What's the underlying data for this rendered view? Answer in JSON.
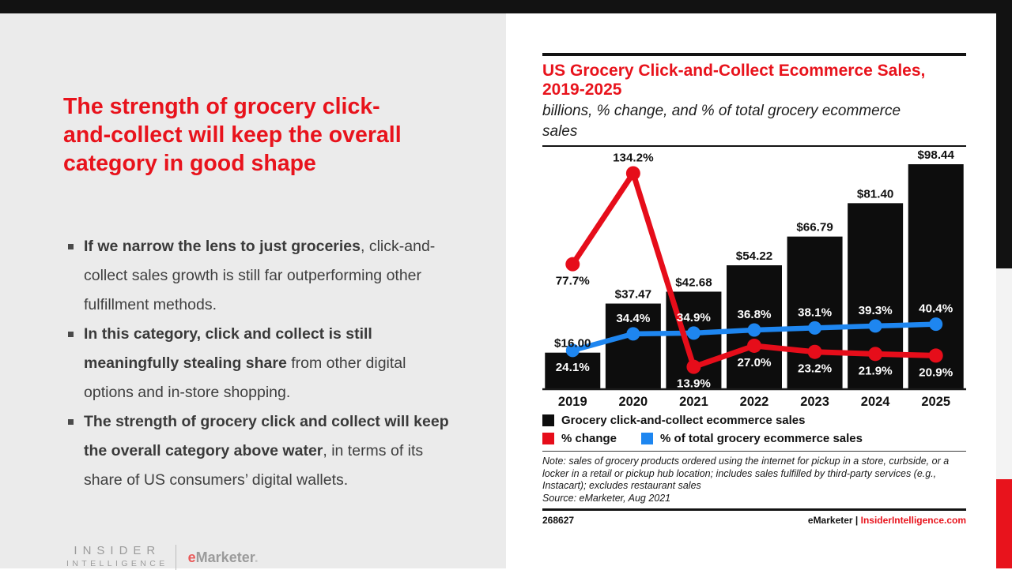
{
  "colors": {
    "accent_red": "#e8131c",
    "line_red": "#e60d1a",
    "line_blue": "#1e86f0",
    "bar_black": "#0d0d0d",
    "panel_gray": "#ebebeb",
    "top_bar_black": "#121212",
    "edge_gray": "#f3f3f3",
    "logo_gray": "#9b9b9b",
    "logo_e_red": "#ea5a5a",
    "body_text": "#3f3f3f"
  },
  "left": {
    "title": "The strength of grocery click-\nand-collect will keep the overall\ncategory in good shape",
    "bullets": [
      {
        "bold": "If we narrow the lens to just groceries",
        "rest": ", click-and-collect sales growth is still far outperforming other fulfillment methods."
      },
      {
        "bold": "In this category, click and collect is still meaningfully stealing share",
        "rest": " from other digital options and in-store shopping."
      },
      {
        "bold": "The strength of grocery click and collect will keep the overall category above water",
        "rest": ", in terms of its share of US consumers’ digital wallets."
      }
    ],
    "logo": {
      "line1": "INSIDER",
      "line2": "INTELLIGENCE",
      "brand_e": "e",
      "brand_rest": "Marketer",
      "dot": "."
    }
  },
  "chart_panel": {
    "note": "Note: sales of grocery products ordered using the internet for pickup in a store, curbside, or a locker in a retail or pickup hub location; includes sales fulfilled by third-party services (e.g., Instacart); excludes restaurant sales",
    "source": "Source: eMarketer, Aug 2021",
    "footer_id": "268627",
    "footer_brand": "eMarketer",
    "footer_sep": " | ",
    "footer_site": "InsiderIntelligence.com"
  },
  "chart_data": {
    "type": "bar",
    "title": "US Grocery Click-and-Collect Ecommerce Sales,\n2019-2025",
    "subtitle": "billions, % change, and % of total grocery ecommerce\nsales",
    "categories": [
      "2019",
      "2020",
      "2021",
      "2022",
      "2023",
      "2024",
      "2025"
    ],
    "series": [
      {
        "name": "Grocery click-and-collect ecommerce sales",
        "type": "bar",
        "color": "#0d0d0d",
        "values": [
          16.0,
          37.47,
          42.68,
          54.22,
          66.79,
          81.4,
          98.44
        ],
        "labels": [
          "$16.00",
          "$37.47",
          "$42.68",
          "$54.22",
          "$66.79",
          "$81.40",
          "$98.44"
        ]
      },
      {
        "name": "% change",
        "type": "line",
        "color": "#e60d1a",
        "values": [
          77.7,
          134.2,
          13.9,
          27.0,
          23.2,
          21.9,
          20.9
        ],
        "labels": [
          "77.7%",
          "134.2%",
          "13.9%",
          "27.0%",
          "23.2%",
          "21.9%",
          "20.9%"
        ],
        "label_pos": [
          "below",
          "above",
          "below",
          "below",
          "below",
          "below",
          "below"
        ]
      },
      {
        "name": "% of total grocery ecommerce sales",
        "type": "line",
        "color": "#1e86f0",
        "values": [
          24.1,
          34.4,
          34.9,
          36.8,
          38.1,
          39.3,
          40.4
        ],
        "labels": [
          "24.1%",
          "34.4%",
          "34.9%",
          "36.8%",
          "38.1%",
          "39.3%",
          "40.4%"
        ],
        "label_pos": [
          "below",
          "above",
          "above",
          "above",
          "above",
          "above",
          "above"
        ]
      }
    ],
    "bar_ylim": [
      0,
      105
    ],
    "pct_ylim": [
      0,
      145
    ],
    "xlabel": "",
    "ylabel": "",
    "grid": false,
    "legend_position": "bottom"
  }
}
